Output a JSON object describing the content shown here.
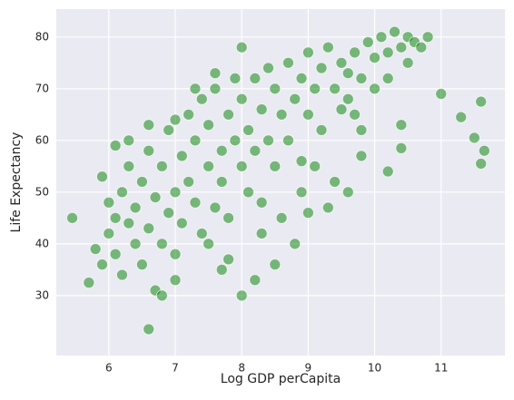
{
  "chart_data": {
    "type": "scatter",
    "xlabel": "Log GDP perCapita",
    "ylabel": "Life Expectancy",
    "color": "#008000",
    "grid": true,
    "xlim": [
      5.21,
      11.96
    ],
    "ylim": [
      18.4,
      85.4
    ],
    "xticks": [
      6,
      7,
      8,
      9,
      10,
      11
    ],
    "yticks": [
      30,
      40,
      50,
      60,
      70,
      80
    ],
    "x": [
      5.8,
      5.9,
      6.0,
      6.0,
      6.1,
      6.1,
      6.2,
      6.2,
      6.3,
      6.3,
      6.4,
      6.4,
      6.5,
      6.5,
      6.6,
      6.6,
      6.7,
      6.7,
      6.8,
      6.8,
      6.9,
      6.9,
      7.0,
      7.0,
      7.1,
      7.1,
      7.2,
      7.2,
      7.3,
      7.3,
      7.4,
      7.4,
      7.5,
      7.5,
      7.6,
      7.6,
      7.7,
      7.7,
      7.8,
      7.8,
      7.9,
      7.9,
      8.0,
      8.0,
      8.1,
      8.1,
      8.2,
      8.2,
      8.3,
      8.3,
      8.4,
      8.4,
      8.5,
      8.5,
      8.6,
      8.7,
      8.7,
      8.8,
      8.9,
      8.9,
      9.0,
      9.0,
      9.1,
      9.2,
      9.2,
      9.3,
      9.4,
      9.5,
      9.5,
      9.6,
      9.7,
      9.8,
      9.9,
      10.0,
      10.1,
      10.2,
      10.3,
      10.4,
      10.5,
      10.6,
      10.7,
      10.8,
      10.0,
      9.7,
      8.9,
      9.3,
      6.3,
      6.1,
      5.9,
      6.6,
      7.0,
      7.3,
      7.6,
      7.0,
      6.8,
      8.0,
      8.2,
      8.5,
      8.8,
      8.3,
      7.5,
      7.8,
      8.6,
      9.0,
      9.4,
      9.1,
      9.8,
      10.2,
      10.5,
      9.6,
      8.0,
      7.7,
      5.45,
      5.7,
      6.6,
      11.0,
      11.3,
      11.5,
      11.6,
      11.65,
      11.6,
      10.4,
      10.4,
      10.2,
      9.6,
      9.8
    ],
    "values": [
      39,
      36,
      42,
      48,
      45,
      38,
      50,
      34,
      44,
      55,
      40,
      47,
      52,
      36,
      58,
      43,
      49,
      31,
      55,
      40,
      62,
      46,
      50,
      38,
      57,
      44,
      65,
      52,
      48,
      60,
      42,
      68,
      55,
      63,
      47,
      70,
      58,
      52,
      65,
      45,
      72,
      60,
      55,
      68,
      50,
      62,
      72,
      58,
      66,
      48,
      74,
      60,
      70,
      55,
      65,
      75,
      60,
      68,
      72,
      56,
      77,
      65,
      70,
      74,
      62,
      78,
      70,
      75,
      66,
      73,
      77,
      72,
      79,
      76,
      80,
      77,
      81,
      78,
      80,
      79,
      78,
      80,
      70,
      65,
      50,
      47,
      60,
      59,
      53,
      63,
      64,
      70,
      73,
      33,
      30,
      30,
      33,
      36,
      40,
      42,
      40,
      37,
      45,
      46,
      52,
      55,
      62,
      72,
      75,
      68,
      78,
      35,
      45,
      32.5,
      23.5,
      69,
      64.5,
      60.5,
      55.5,
      58,
      67.5,
      63,
      58.5,
      54,
      50,
      57
    ]
  }
}
